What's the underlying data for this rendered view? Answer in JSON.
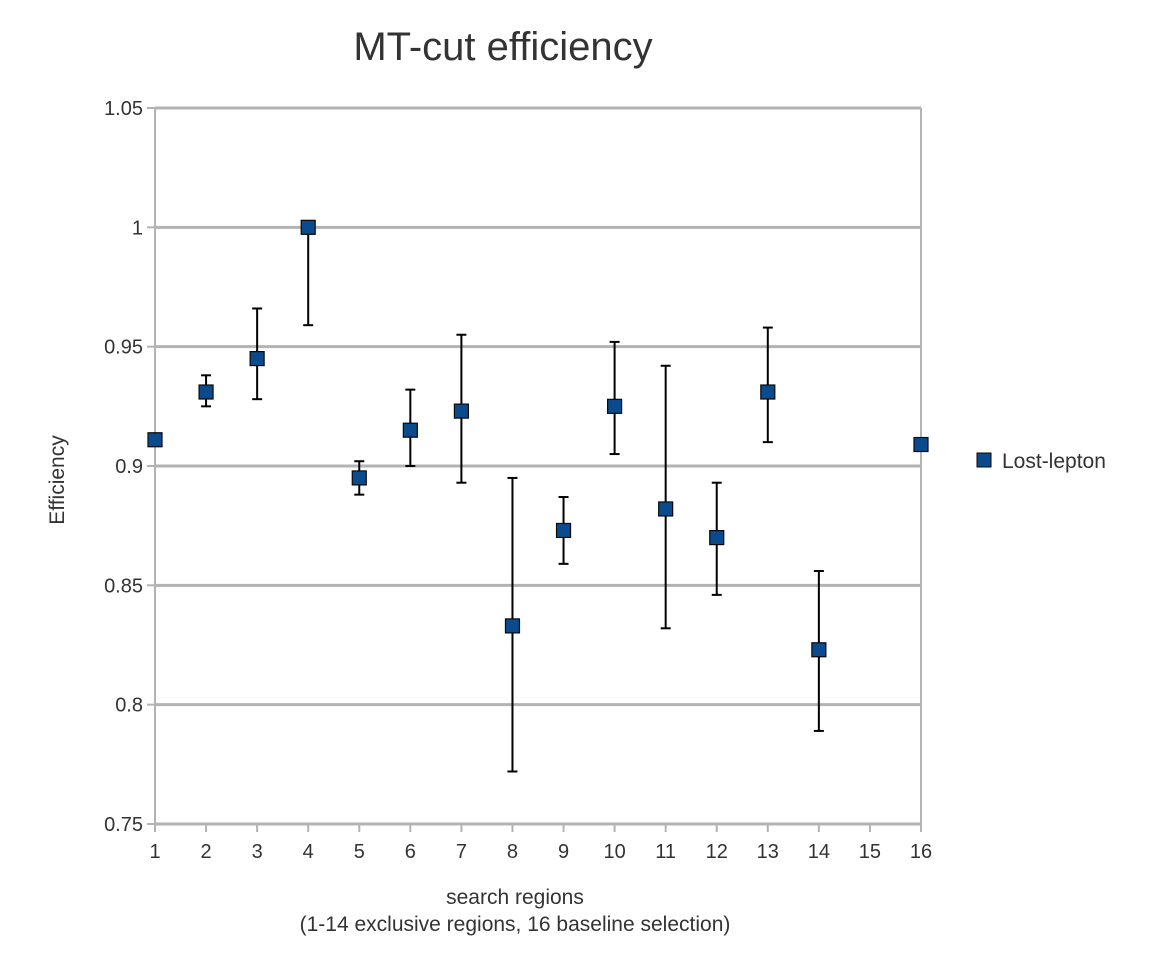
{
  "chart_data": {
    "type": "scatter",
    "title": "MT-cut efficiency",
    "xlabel": "search regions",
    "xlabel_sub": "(1-14 exclusive regions, 16 baseline selection)",
    "ylabel": "Efficiency",
    "xlim": [
      1,
      16
    ],
    "ylim": [
      0.75,
      1.05
    ],
    "x_ticks": [
      1,
      2,
      3,
      4,
      5,
      6,
      7,
      8,
      9,
      10,
      11,
      12,
      13,
      14,
      15,
      16
    ],
    "x_tick_labels": [
      "1",
      "2",
      "3",
      "4",
      "5",
      "6",
      "7",
      "8",
      "9",
      "10",
      "11",
      "12",
      "13",
      "14",
      "15",
      "16"
    ],
    "y_ticks": [
      0.75,
      0.8,
      0.85,
      0.9,
      0.95,
      1.0,
      1.05
    ],
    "y_tick_labels": [
      "0.75",
      "0.8",
      "0.85",
      "0.9",
      "0.95",
      "1",
      "1.05"
    ],
    "grid": "horizontal",
    "legend_position": "right",
    "series": [
      {
        "name": "Lost-lepton",
        "color": "#0b4a8c",
        "marker": "square",
        "points": [
          {
            "x": 1,
            "y": 0.911,
            "low": 0.909,
            "high": 0.913
          },
          {
            "x": 2,
            "y": 0.931,
            "low": 0.925,
            "high": 0.938
          },
          {
            "x": 3,
            "y": 0.945,
            "low": 0.928,
            "high": 0.966
          },
          {
            "x": 4,
            "y": 1.0,
            "low": 0.959,
            "high": 1.0
          },
          {
            "x": 5,
            "y": 0.895,
            "low": 0.888,
            "high": 0.902
          },
          {
            "x": 6,
            "y": 0.915,
            "low": 0.9,
            "high": 0.932
          },
          {
            "x": 7,
            "y": 0.923,
            "low": 0.893,
            "high": 0.955
          },
          {
            "x": 8,
            "y": 0.833,
            "low": 0.772,
            "high": 0.895
          },
          {
            "x": 9,
            "y": 0.873,
            "low": 0.859,
            "high": 0.887
          },
          {
            "x": 10,
            "y": 0.925,
            "low": 0.905,
            "high": 0.952
          },
          {
            "x": 11,
            "y": 0.882,
            "low": 0.832,
            "high": 0.942
          },
          {
            "x": 12,
            "y": 0.87,
            "low": 0.846,
            "high": 0.893
          },
          {
            "x": 13,
            "y": 0.931,
            "low": 0.91,
            "high": 0.958
          },
          {
            "x": 14,
            "y": 0.823,
            "low": 0.789,
            "high": 0.856
          },
          {
            "x": 16,
            "y": 0.909,
            "low": 0.907,
            "high": 0.911
          }
        ]
      }
    ]
  }
}
